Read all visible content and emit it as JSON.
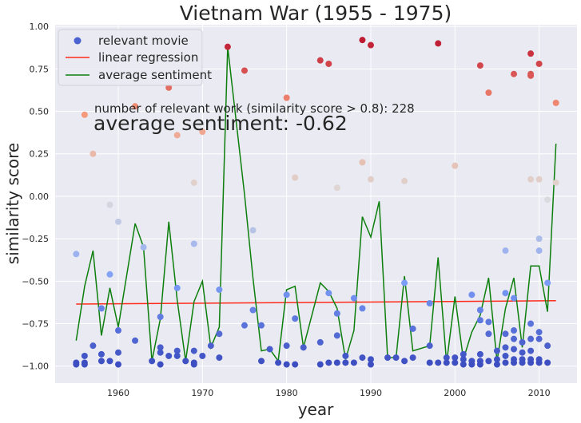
{
  "chart_data": {
    "type": "scatter",
    "title": "Vietnam War (1955 - 1975)",
    "xlabel": "year",
    "ylabel": "similarity score",
    "xlim": [
      1952.5,
      2014.5
    ],
    "ylim": [
      -1.1,
      1.01
    ],
    "x_ticks": [
      1960,
      1970,
      1980,
      1990,
      2000,
      2010
    ],
    "y_ticks": [
      1.0,
      0.75,
      0.5,
      0.25,
      0.0,
      -0.25,
      -0.5,
      -0.75,
      -1.0
    ],
    "x_tick_labels": [
      "1960",
      "1970",
      "1980",
      "1990",
      "2000",
      "2010"
    ],
    "y_tick_labels": [
      "1.00",
      "0.75",
      "0.50",
      "0.25",
      "0.00",
      "−0.25",
      "−0.50",
      "−0.75",
      "−1.00"
    ],
    "grid": true,
    "legend_position": "top-left",
    "legend": [
      {
        "label": "relevant movie",
        "kind": "marker",
        "color": "#4a63d0"
      },
      {
        "label": "linear regression",
        "kind": "line",
        "color": "#ff2a1a"
      },
      {
        "label": "average sentiment",
        "kind": "line",
        "color": "#0c7f0c"
      }
    ],
    "annotations": [
      "number of relevant work (similarity score > 0.8): 228",
      "average sentiment: -0.62"
    ],
    "colormap": "coolwarm",
    "series": [
      {
        "name": "relevant movie",
        "kind": "scatter",
        "points": [
          [
            1955,
            -0.34
          ],
          [
            1955,
            -0.98
          ],
          [
            1955,
            -0.99
          ],
          [
            1956,
            0.48
          ],
          [
            1956,
            -0.94
          ],
          [
            1956,
            -0.98
          ],
          [
            1956,
            -0.99
          ],
          [
            1957,
            0.25
          ],
          [
            1957,
            -0.88
          ],
          [
            1958,
            -0.66
          ],
          [
            1958,
            -0.93
          ],
          [
            1958,
            -0.97
          ],
          [
            1959,
            -0.05
          ],
          [
            1959,
            -0.46
          ],
          [
            1959,
            -0.97
          ],
          [
            1960,
            -0.15
          ],
          [
            1960,
            -0.79
          ],
          [
            1960,
            -0.92
          ],
          [
            1960,
            -0.99
          ],
          [
            1962,
            0.53
          ],
          [
            1962,
            -0.85
          ],
          [
            1963,
            -0.3
          ],
          [
            1964,
            -0.97
          ],
          [
            1965,
            -0.71
          ],
          [
            1965,
            -0.89
          ],
          [
            1965,
            -0.92
          ],
          [
            1965,
            -0.99
          ],
          [
            1966,
            0.64
          ],
          [
            1966,
            -0.94
          ],
          [
            1967,
            0.36
          ],
          [
            1967,
            -0.54
          ],
          [
            1967,
            -0.91
          ],
          [
            1967,
            -0.94
          ],
          [
            1968,
            -0.97
          ],
          [
            1969,
            0.08
          ],
          [
            1969,
            -0.28
          ],
          [
            1969,
            -0.91
          ],
          [
            1969,
            -0.98
          ],
          [
            1969,
            -0.99
          ],
          [
            1970,
            0.38
          ],
          [
            1970,
            -0.94
          ],
          [
            1971,
            -0.88
          ],
          [
            1972,
            -0.55
          ],
          [
            1972,
            -0.81
          ],
          [
            1972,
            -0.95
          ],
          [
            1973,
            0.88
          ],
          [
            1975,
            0.74
          ],
          [
            1975,
            -0.76
          ],
          [
            1976,
            -0.2
          ],
          [
            1976,
            -0.67
          ],
          [
            1977,
            -0.76
          ],
          [
            1977,
            -0.97
          ],
          [
            1978,
            -0.9
          ],
          [
            1979,
            -0.98
          ],
          [
            1980,
            0.58
          ],
          [
            1980,
            -0.58
          ],
          [
            1980,
            -0.88
          ],
          [
            1980,
            -0.99
          ],
          [
            1981,
            0.11
          ],
          [
            1981,
            -0.72
          ],
          [
            1981,
            -0.99
          ],
          [
            1982,
            -0.89
          ],
          [
            1984,
            0.8
          ],
          [
            1984,
            -0.86
          ],
          [
            1984,
            -0.99
          ],
          [
            1985,
            0.78
          ],
          [
            1985,
            -0.57
          ],
          [
            1985,
            -0.98
          ],
          [
            1986,
            0.05
          ],
          [
            1986,
            -0.69
          ],
          [
            1986,
            -0.82
          ],
          [
            1986,
            -0.98
          ],
          [
            1987,
            -0.94
          ],
          [
            1987,
            -0.98
          ],
          [
            1988,
            -0.6
          ],
          [
            1988,
            -0.98
          ],
          [
            1989,
            0.92
          ],
          [
            1989,
            0.2
          ],
          [
            1989,
            -0.66
          ],
          [
            1989,
            -0.95
          ],
          [
            1990,
            0.89
          ],
          [
            1990,
            0.1
          ],
          [
            1990,
            -0.96
          ],
          [
            1990,
            -0.99
          ],
          [
            1992,
            -0.95
          ],
          [
            1993,
            -0.95
          ],
          [
            1994,
            0.09
          ],
          [
            1994,
            -0.51
          ],
          [
            1994,
            -0.97
          ],
          [
            1995,
            -0.78
          ],
          [
            1995,
            -0.95
          ],
          [
            1997,
            -0.63
          ],
          [
            1997,
            -0.88
          ],
          [
            1997,
            -0.98
          ],
          [
            1998,
            0.9
          ],
          [
            1998,
            -0.98
          ],
          [
            1999,
            -0.95
          ],
          [
            1999,
            -0.98
          ],
          [
            2000,
            0.18
          ],
          [
            2000,
            -0.95
          ],
          [
            2000,
            -0.98
          ],
          [
            2001,
            -0.93
          ],
          [
            2001,
            -0.96
          ],
          [
            2001,
            -0.99
          ],
          [
            2002,
            -0.58
          ],
          [
            2002,
            -0.97
          ],
          [
            2002,
            -0.99
          ],
          [
            2003,
            0.77
          ],
          [
            2003,
            -0.67
          ],
          [
            2003,
            -0.73
          ],
          [
            2003,
            -0.93
          ],
          [
            2003,
            -0.97
          ],
          [
            2003,
            -0.99
          ],
          [
            2004,
            0.61
          ],
          [
            2004,
            -0.74
          ],
          [
            2004,
            -0.81
          ],
          [
            2004,
            -0.97
          ],
          [
            2005,
            -0.91
          ],
          [
            2005,
            -0.96
          ],
          [
            2005,
            -0.99
          ],
          [
            2006,
            -0.32
          ],
          [
            2006,
            -0.57
          ],
          [
            2006,
            -0.81
          ],
          [
            2006,
            -0.89
          ],
          [
            2006,
            -0.94
          ],
          [
            2006,
            -0.98
          ],
          [
            2007,
            0.72
          ],
          [
            2007,
            -0.6
          ],
          [
            2007,
            -0.79
          ],
          [
            2007,
            -0.84
          ],
          [
            2007,
            -0.9
          ],
          [
            2007,
            -0.96
          ],
          [
            2007,
            -0.98
          ],
          [
            2008,
            -0.86
          ],
          [
            2008,
            -0.92
          ],
          [
            2008,
            -0.96
          ],
          [
            2008,
            -0.98
          ],
          [
            2009,
            0.84
          ],
          [
            2009,
            0.72
          ],
          [
            2009,
            0.71
          ],
          [
            2009,
            0.1
          ],
          [
            2009,
            -0.75
          ],
          [
            2009,
            -0.84
          ],
          [
            2009,
            -0.91
          ],
          [
            2009,
            -0.96
          ],
          [
            2009,
            -0.98
          ],
          [
            2010,
            0.78
          ],
          [
            2010,
            0.1
          ],
          [
            2010,
            -0.25
          ],
          [
            2010,
            -0.32
          ],
          [
            2010,
            -0.8
          ],
          [
            2010,
            -0.84
          ],
          [
            2010,
            -0.96
          ],
          [
            2010,
            -0.98
          ],
          [
            2011,
            -0.02
          ],
          [
            2011,
            -0.51
          ],
          [
            2011,
            -0.88
          ],
          [
            2011,
            -0.98
          ],
          [
            2012,
            0.55
          ],
          [
            2012,
            0.08
          ]
        ]
      },
      {
        "name": "linear regression",
        "kind": "line",
        "color": "#ff2a1a",
        "points": [
          [
            1955,
            -0.635
          ],
          [
            2012,
            -0.615
          ]
        ]
      },
      {
        "name": "average sentiment",
        "kind": "line",
        "color": "#0c7f0c",
        "points": [
          [
            1955,
            -0.85
          ],
          [
            1956,
            -0.53
          ],
          [
            1957,
            -0.32
          ],
          [
            1958,
            -0.82
          ],
          [
            1959,
            -0.54
          ],
          [
            1960,
            -0.77
          ],
          [
            1962,
            -0.16
          ],
          [
            1963,
            -0.3
          ],
          [
            1964,
            -0.97
          ],
          [
            1965,
            -0.72
          ],
          [
            1966,
            -0.15
          ],
          [
            1967,
            -0.61
          ],
          [
            1968,
            -0.97
          ],
          [
            1969,
            -0.62
          ],
          [
            1970,
            -0.5
          ],
          [
            1971,
            -0.89
          ],
          [
            1972,
            -0.77
          ],
          [
            1973,
            0.88
          ],
          [
            1975,
            0.01
          ],
          [
            1976,
            -0.48
          ],
          [
            1977,
            -0.91
          ],
          [
            1978,
            -0.9
          ],
          [
            1979,
            -0.97
          ],
          [
            1980,
            -0.55
          ],
          [
            1981,
            -0.53
          ],
          [
            1982,
            -0.89
          ],
          [
            1984,
            -0.51
          ],
          [
            1985,
            -0.56
          ],
          [
            1986,
            -0.66
          ],
          [
            1987,
            -0.96
          ],
          [
            1988,
            -0.79
          ],
          [
            1989,
            -0.12
          ],
          [
            1990,
            -0.24
          ],
          [
            1991,
            -0.03
          ],
          [
            1992,
            -0.95
          ],
          [
            1993,
            -0.95
          ],
          [
            1994,
            -0.47
          ],
          [
            1995,
            -0.91
          ],
          [
            1997,
            -0.88
          ],
          [
            1998,
            -0.36
          ],
          [
            1999,
            -0.98
          ],
          [
            2000,
            -0.59
          ],
          [
            2001,
            -0.96
          ],
          [
            2002,
            -0.8
          ],
          [
            2003,
            -0.7
          ],
          [
            2004,
            -0.48
          ],
          [
            2005,
            -0.97
          ],
          [
            2006,
            -0.66
          ],
          [
            2007,
            -0.48
          ],
          [
            2008,
            -0.89
          ],
          [
            2009,
            -0.41
          ],
          [
            2010,
            -0.41
          ],
          [
            2011,
            -0.68
          ],
          [
            2012,
            0.31
          ]
        ]
      }
    ]
  }
}
